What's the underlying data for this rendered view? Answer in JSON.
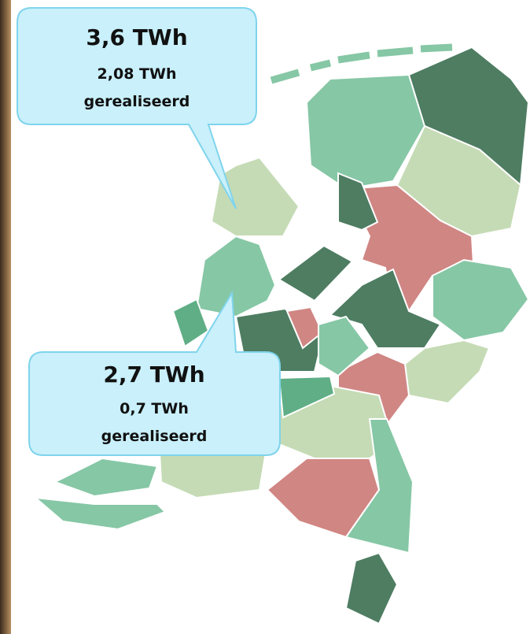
{
  "callouts": [
    {
      "total": "3,6 TWh",
      "realised": "2,08 TWh",
      "note": "gerealiseerd"
    },
    {
      "total": "2,7 TWh",
      "realised": "0,7 TWh",
      "note": "gerealiseerd"
    }
  ]
}
